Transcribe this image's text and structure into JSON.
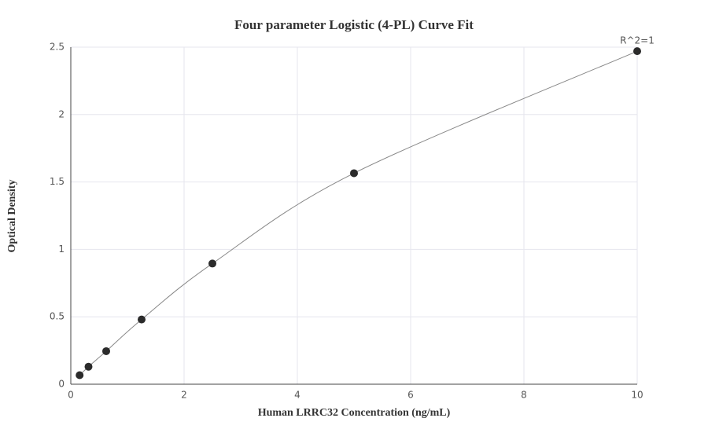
{
  "chart_data": {
    "type": "scatter",
    "title": "Four parameter Logistic (4-PL) Curve Fit",
    "x_label": "Human LRRC32 Concentration (ng/mL)",
    "y_label": "Optical Density",
    "annotation": "R^2=1",
    "x": [
      0.156,
      0.3125,
      0.625,
      1.25,
      2.5,
      5,
      10
    ],
    "values": [
      0.067,
      0.13,
      0.245,
      0.48,
      0.895,
      1.565,
      2.47
    ],
    "color": "#2b2b2b",
    "line_color": "#888888",
    "xlim": [
      0,
      10
    ],
    "xticks": [
      0,
      2,
      4,
      6,
      8,
      10
    ],
    "ylim": [
      0,
      2.5
    ],
    "yticks": [
      0,
      0.5,
      1,
      1.5,
      2,
      2.5
    ],
    "grid": true
  }
}
